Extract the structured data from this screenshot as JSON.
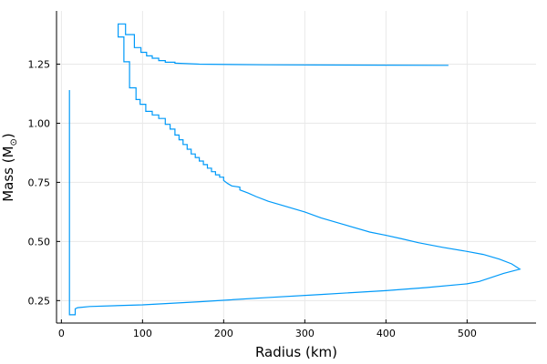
{
  "chart_data": {
    "type": "line",
    "title": "",
    "xlabel": "Radius (km)",
    "ylabel": "Mass (M",
    "ylabel_symbol": "⊙",
    "ylabel_suffix": ")",
    "xlim": [
      -6,
      585
    ],
    "ylim": [
      0.155,
      1.475
    ],
    "xticks": [
      0,
      100,
      200,
      300,
      400,
      500
    ],
    "xtick_labels": [
      "0",
      "100",
      "200",
      "300",
      "400",
      "500"
    ],
    "yticks": [
      0.25,
      0.5,
      0.75,
      1.0,
      1.25
    ],
    "ytick_labels": [
      "0.25",
      "0.50",
      "0.75",
      "1.00",
      "1.25"
    ],
    "grid": true,
    "legend": "none",
    "line_color": "#009af9",
    "series": [
      {
        "points": [
          [
            10,
            1.14
          ],
          [
            10,
            0.19
          ],
          [
            17,
            0.19
          ],
          [
            17,
            0.215
          ],
          [
            20,
            0.22
          ],
          [
            35,
            0.225
          ],
          [
            100,
            0.232
          ],
          [
            170,
            0.245
          ],
          [
            250,
            0.262
          ],
          [
            320,
            0.276
          ],
          [
            400,
            0.292
          ],
          [
            450,
            0.305
          ],
          [
            500,
            0.321
          ],
          [
            515,
            0.331
          ],
          [
            545,
            0.365
          ],
          [
            565,
            0.383
          ],
          [
            555,
            0.405
          ],
          [
            540,
            0.425
          ],
          [
            520,
            0.445
          ],
          [
            500,
            0.458
          ],
          [
            470,
            0.475
          ],
          [
            440,
            0.495
          ],
          [
            420,
            0.511
          ],
          [
            400,
            0.526
          ],
          [
            380,
            0.54
          ],
          [
            345,
            0.575
          ],
          [
            320,
            0.6
          ],
          [
            300,
            0.625
          ],
          [
            290,
            0.635
          ],
          [
            280,
            0.645
          ],
          [
            270,
            0.655
          ],
          [
            255,
            0.67
          ],
          [
            240,
            0.69
          ],
          [
            230,
            0.705
          ],
          [
            220,
            0.718
          ],
          [
            220,
            0.73
          ],
          [
            210,
            0.735
          ],
          [
            205,
            0.745
          ],
          [
            200,
            0.758
          ],
          [
            200,
            0.772
          ],
          [
            195,
            0.772
          ],
          [
            195,
            0.782
          ],
          [
            190,
            0.782
          ],
          [
            190,
            0.795
          ],
          [
            185,
            0.795
          ],
          [
            185,
            0.81
          ],
          [
            180,
            0.81
          ],
          [
            180,
            0.825
          ],
          [
            175,
            0.825
          ],
          [
            175,
            0.84
          ],
          [
            170,
            0.84
          ],
          [
            170,
            0.855
          ],
          [
            165,
            0.855
          ],
          [
            165,
            0.87
          ],
          [
            160,
            0.87
          ],
          [
            160,
            0.89
          ],
          [
            155,
            0.89
          ],
          [
            155,
            0.91
          ],
          [
            150,
            0.91
          ],
          [
            150,
            0.93
          ],
          [
            145,
            0.93
          ],
          [
            145,
            0.95
          ],
          [
            140,
            0.95
          ],
          [
            140,
            0.975
          ],
          [
            134,
            0.975
          ],
          [
            134,
            0.995
          ],
          [
            128,
            0.995
          ],
          [
            128,
            1.02
          ],
          [
            120,
            1.02
          ],
          [
            120,
            1.035
          ],
          [
            112,
            1.035
          ],
          [
            112,
            1.05
          ],
          [
            104,
            1.05
          ],
          [
            104,
            1.08
          ],
          [
            97,
            1.08
          ],
          [
            97,
            1.1
          ],
          [
            92,
            1.1
          ],
          [
            92,
            1.15
          ],
          [
            84,
            1.15
          ],
          [
            84,
            1.26
          ],
          [
            77,
            1.26
          ],
          [
            77,
            1.365
          ],
          [
            70,
            1.365
          ],
          [
            70,
            1.42
          ],
          [
            79,
            1.42
          ],
          [
            79,
            1.375
          ],
          [
            90,
            1.375
          ],
          [
            90,
            1.32
          ],
          [
            98,
            1.32
          ],
          [
            98,
            1.3
          ],
          [
            105,
            1.3
          ],
          [
            105,
            1.285
          ],
          [
            112,
            1.285
          ],
          [
            112,
            1.275
          ],
          [
            120,
            1.275
          ],
          [
            120,
            1.265
          ],
          [
            128,
            1.265
          ],
          [
            128,
            1.258
          ],
          [
            140,
            1.258
          ],
          [
            140,
            1.254
          ],
          [
            170,
            1.25
          ],
          [
            250,
            1.247
          ],
          [
            350,
            1.246
          ],
          [
            477,
            1.245
          ]
        ]
      }
    ]
  }
}
